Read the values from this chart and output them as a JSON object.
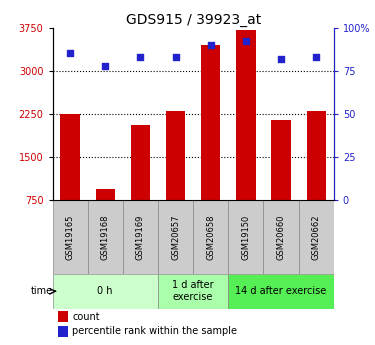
{
  "title": "GDS915 / 39923_at",
  "categories": [
    "GSM19165",
    "GSM19168",
    "GSM19169",
    "GSM20657",
    "GSM20658",
    "GSM19150",
    "GSM20660",
    "GSM20662"
  ],
  "counts": [
    2250,
    950,
    2050,
    2300,
    3450,
    3700,
    2150,
    2300
  ],
  "percentiles": [
    85,
    78,
    83,
    83,
    90,
    92,
    82,
    83
  ],
  "bar_color": "#cc0000",
  "dot_color": "#2222cc",
  "ylim_left": [
    750,
    3750
  ],
  "ylim_right": [
    0,
    100
  ],
  "yticks_left": [
    750,
    1500,
    2250,
    3000,
    3750
  ],
  "yticks_right": [
    0,
    25,
    50,
    75,
    100
  ],
  "grid_lines": [
    1500,
    2250,
    3000
  ],
  "groups": [
    {
      "label": "0 h",
      "start": 0,
      "end": 3,
      "color": "#ccffcc"
    },
    {
      "label": "1 d after\nexercise",
      "start": 3,
      "end": 5,
      "color": "#aaffaa"
    },
    {
      "label": "14 d after exercise",
      "start": 5,
      "end": 8,
      "color": "#55ee55"
    }
  ],
  "time_label": "time",
  "legend_count_label": "count",
  "legend_percentile_label": "percentile rank within the sample",
  "title_fontsize": 10,
  "tick_fontsize": 7,
  "gsm_fontsize": 6,
  "group_fontsize": 7,
  "legend_fontsize": 7,
  "bar_width": 0.55,
  "gsm_box_color": "#cccccc",
  "gsm_box_edge": "#888888"
}
